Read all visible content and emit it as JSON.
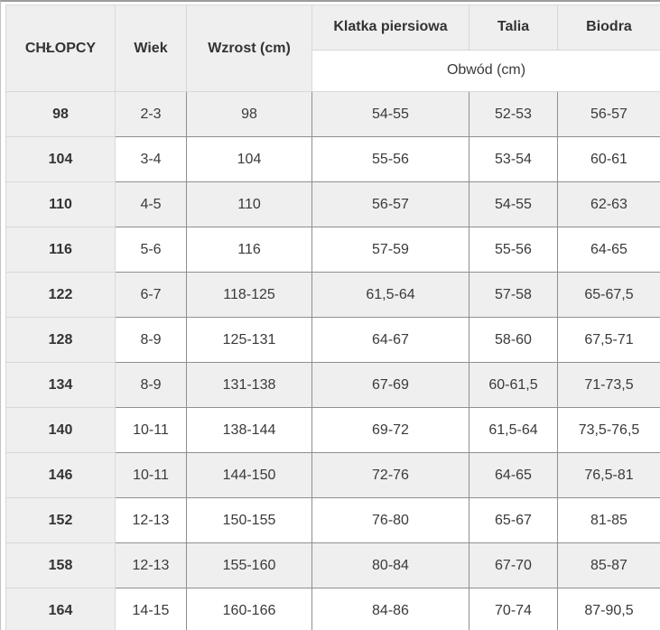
{
  "chart_data": {
    "type": "table",
    "columns": [
      "CHŁOPCY",
      "Wiek",
      "Wzrost (cm)",
      "Klatka piersiowa",
      "Talia",
      "Biodra"
    ],
    "subheader_label": "Obwód (cm)",
    "subheader_span_columns": [
      "Klatka piersiowa",
      "Talia",
      "Biodra"
    ],
    "rows": [
      [
        "98",
        "2-3",
        "98",
        "54-55",
        "52-53",
        "56-57"
      ],
      [
        "104",
        "3-4",
        "104",
        "55-56",
        "53-54",
        "60-61"
      ],
      [
        "110",
        "4-5",
        "110",
        "56-57",
        "54-55",
        "62-63"
      ],
      [
        "116",
        "5-6",
        "116",
        "57-59",
        "55-56",
        "64-65"
      ],
      [
        "122",
        "6-7",
        "118-125",
        "61,5-64",
        "57-58",
        "65-67,5"
      ],
      [
        "128",
        "8-9",
        "125-131",
        "64-67",
        "58-60",
        "67,5-71"
      ],
      [
        "134",
        "8-9",
        "131-138",
        "67-69",
        "60-61,5",
        "71-73,5"
      ],
      [
        "140",
        "10-11",
        "138-144",
        "69-72",
        "61,5-64",
        "73,5-76,5"
      ],
      [
        "146",
        "10-11",
        "144-150",
        "72-76",
        "64-65",
        "76,5-81"
      ],
      [
        "152",
        "12-13",
        "150-155",
        "76-80",
        "65-67",
        "81-85"
      ],
      [
        "158",
        "12-13",
        "155-160",
        "80-84",
        "67-70",
        "85-87"
      ],
      [
        "164",
        "14-15",
        "160-166",
        "84-86",
        "70-74",
        "87-90,5"
      ]
    ]
  },
  "colors": {
    "cell_alt_bg": "#efefef",
    "cell_bg": "#ffffff",
    "border_dark": "#8f8f8f",
    "border_light": "#d8d8d8",
    "header_text": "#333333",
    "body_text": "#3a3a3a"
  }
}
